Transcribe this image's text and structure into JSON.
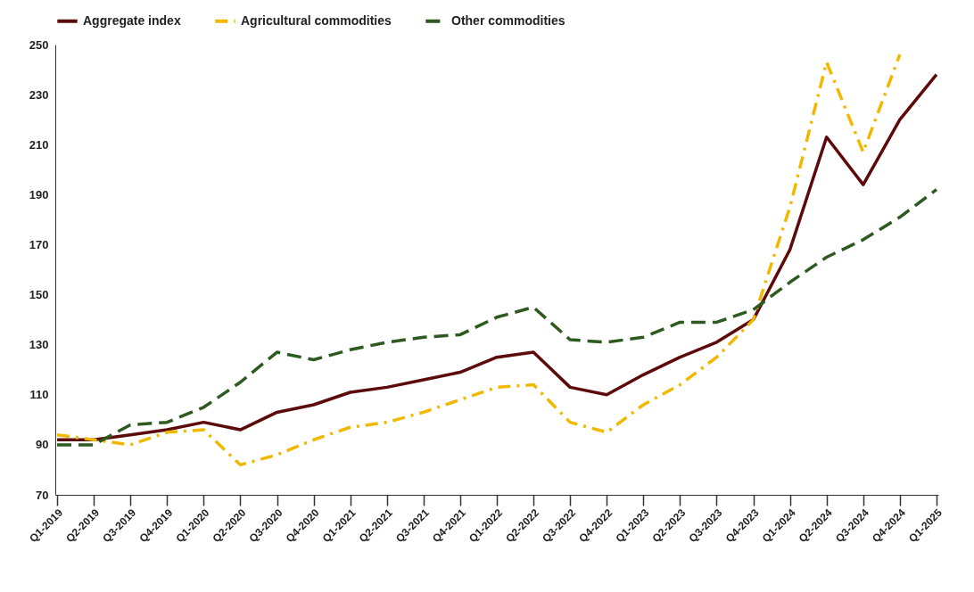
{
  "chart_data": {
    "type": "line",
    "categories": [
      "Q1-2019",
      "Q2-2019",
      "Q3-2019",
      "Q4-2019",
      "Q1-2020",
      "Q2-2020",
      "Q3-2020",
      "Q4-2020",
      "Q1-2021",
      "Q2-2021",
      "Q3-2021",
      "Q4-2021",
      "Q1-2022",
      "Q2-2022",
      "Q3-2022",
      "Q4-2022",
      "Q1-2023",
      "Q2-2023",
      "Q3-2023",
      "Q4-2023",
      "Q1-2024",
      "Q2-2024",
      "Q3-2024",
      "Q4-2024",
      "Q1-2025"
    ],
    "series": [
      {
        "name": "Aggregate index",
        "color": "#5c0a0a",
        "line_style": "solid",
        "values": [
          92,
          92,
          94,
          96,
          99,
          96,
          103,
          106,
          111,
          113,
          116,
          119,
          125,
          127,
          113,
          110,
          118,
          125,
          131,
          140,
          168,
          213,
          194,
          220,
          238
        ]
      },
      {
        "name": "Agricultural commodities",
        "color": "#f2b800",
        "line_style": "dotted",
        "values": [
          94,
          92,
          90,
          95,
          96,
          82,
          86,
          92,
          97,
          99,
          103,
          108,
          113,
          114,
          99,
          95,
          106,
          114,
          125,
          140,
          185,
          243,
          207,
          246,
          null
        ]
      },
      {
        "name": "Other commodities",
        "color": "#2d5a1e",
        "line_style": "dashed",
        "values": [
          90,
          90,
          98,
          99,
          105,
          115,
          127,
          124,
          128,
          131,
          133,
          134,
          141,
          145,
          132,
          131,
          133,
          139,
          139,
          144,
          155,
          165,
          172,
          181,
          192
        ]
      }
    ],
    "ylim": [
      70,
      250
    ],
    "yticks": [
      70,
      90,
      110,
      130,
      150,
      170,
      190,
      210,
      230,
      250
    ],
    "grid": false,
    "legend": "top",
    "marker": "none"
  }
}
